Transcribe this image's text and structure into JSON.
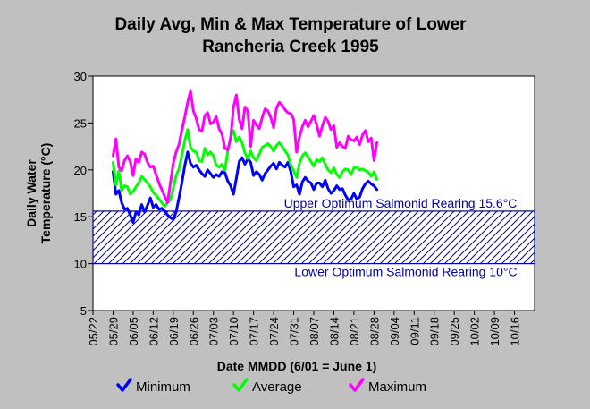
{
  "chart_data": {
    "type": "line",
    "title_line1": "Daily Avg, Min & Max Temperature of Lower",
    "title_line2": "Rancheria Creek 1995",
    "ylabel_line1": "Daily Water",
    "ylabel_line2": "Temperature (°C)",
    "xlabel": "Date MMDD (6/01 = June 1)",
    "ylim": [
      5,
      30
    ],
    "yticks": [
      "5",
      "10",
      "15",
      "20",
      "25",
      "30"
    ],
    "x_start": "05/22",
    "x_end": "10/23",
    "xticks": [
      "05/22",
      "05/29",
      "06/05",
      "06/12",
      "06/19",
      "06/26",
      "07/03",
      "07/10",
      "07/17",
      "07/24",
      "07/31",
      "08/07",
      "08/14",
      "08/21",
      "08/28",
      "09/04",
      "09/11",
      "09/18",
      "09/25",
      "10/02",
      "10/09",
      "10/16"
    ],
    "grid": false,
    "legend_placement": "bottom",
    "bands": [
      {
        "lower": 10,
        "upper": 15.6,
        "upper_label": "Upper Optimum Salmonid Rearing 15.6°C",
        "lower_label": "Lower Optimum Salmonid Rearing 10°C",
        "color": "#0000aa"
      }
    ],
    "series": [
      {
        "name": "Minimum",
        "color": "#0000ff",
        "points": [
          [
            "05/29",
            19.8
          ],
          [
            "05/30",
            17.4
          ],
          [
            "05/31",
            17.8
          ],
          [
            "06/01",
            16.5
          ],
          [
            "06/02",
            15.8
          ],
          [
            "06/03",
            15.9
          ],
          [
            "06/04",
            15.2
          ],
          [
            "06/05",
            14.4
          ],
          [
            "06/06",
            15.5
          ],
          [
            "06/07",
            15.2
          ],
          [
            "06/08",
            16.3
          ],
          [
            "06/09",
            15.5
          ],
          [
            "06/10",
            16.2
          ],
          [
            "06/11",
            17.0
          ],
          [
            "06/12",
            16.0
          ],
          [
            "06/13",
            16.3
          ],
          [
            "06/14",
            15.8
          ],
          [
            "06/15",
            15.9
          ],
          [
            "06/16",
            15.6
          ],
          [
            "06/17",
            15.2
          ],
          [
            "06/18",
            14.9
          ],
          [
            "06/19",
            14.7
          ],
          [
            "06/20",
            15.5
          ],
          [
            "06/21",
            17.0
          ],
          [
            "06/22",
            18.6
          ],
          [
            "06/23",
            20.4
          ],
          [
            "06/24",
            21.9
          ],
          [
            "06/25",
            20.7
          ],
          [
            "06/26",
            20.3
          ],
          [
            "06/27",
            20.5
          ],
          [
            "06/28",
            20.0
          ],
          [
            "06/29",
            19.6
          ],
          [
            "06/30",
            19.3
          ],
          [
            "07/01",
            20.0
          ],
          [
            "07/02",
            19.6
          ],
          [
            "07/03",
            19.2
          ],
          [
            "07/04",
            19.5
          ],
          [
            "07/05",
            19.3
          ],
          [
            "07/06",
            19.8
          ],
          [
            "07/07",
            19.7
          ],
          [
            "07/08",
            18.8
          ],
          [
            "07/09",
            18.3
          ],
          [
            "07/10",
            17.4
          ],
          [
            "07/11",
            19.1
          ],
          [
            "07/12",
            20.9
          ],
          [
            "07/13",
            21.3
          ],
          [
            "07/14",
            20.6
          ],
          [
            "07/15",
            21.2
          ],
          [
            "07/16",
            20.8
          ],
          [
            "07/17",
            19.4
          ],
          [
            "07/18",
            19.8
          ],
          [
            "07/19",
            19.5
          ],
          [
            "07/20",
            18.9
          ],
          [
            "07/21",
            19.6
          ],
          [
            "07/22",
            20.0
          ],
          [
            "07/23",
            20.4
          ],
          [
            "07/24",
            20.7
          ],
          [
            "07/25",
            20.1
          ],
          [
            "07/26",
            20.8
          ],
          [
            "07/27",
            20.5
          ],
          [
            "07/28",
            20.3
          ],
          [
            "07/29",
            20.8
          ],
          [
            "07/30",
            19.8
          ],
          [
            "07/31",
            18.2
          ],
          [
            "08/01",
            18.4
          ],
          [
            "08/02",
            17.4
          ],
          [
            "08/03",
            18.7
          ],
          [
            "08/04",
            19.2
          ],
          [
            "08/05",
            18.8
          ],
          [
            "08/06",
            18.6
          ],
          [
            "08/07",
            17.9
          ],
          [
            "08/08",
            18.6
          ],
          [
            "08/09",
            18.6
          ],
          [
            "08/10",
            18.2
          ],
          [
            "08/11",
            18.9
          ],
          [
            "08/12",
            18.0
          ],
          [
            "08/13",
            17.5
          ],
          [
            "08/14",
            17.8
          ],
          [
            "08/15",
            18.3
          ],
          [
            "08/16",
            17.9
          ],
          [
            "08/17",
            18.0
          ],
          [
            "08/18",
            17.3
          ],
          [
            "08/19",
            16.8
          ],
          [
            "08/20",
            16.9
          ],
          [
            "08/21",
            17.5
          ],
          [
            "08/22",
            16.9
          ],
          [
            "08/23",
            17.1
          ],
          [
            "08/24",
            18.0
          ],
          [
            "08/25",
            18.5
          ],
          [
            "08/26",
            18.8
          ],
          [
            "08/27",
            18.5
          ],
          [
            "08/28",
            18.3
          ],
          [
            "08/29",
            17.9
          ]
        ]
      },
      {
        "name": "Average",
        "color": "#00ff00",
        "points": [
          [
            "05/29",
            20.8
          ],
          [
            "05/30",
            18.4
          ],
          [
            "05/31",
            19.9
          ],
          [
            "06/01",
            17.8
          ],
          [
            "06/02",
            18.3
          ],
          [
            "06/03",
            18.2
          ],
          [
            "06/04",
            17.4
          ],
          [
            "06/05",
            17.7
          ],
          [
            "06/06",
            18.2
          ],
          [
            "06/07",
            18.6
          ],
          [
            "06/08",
            19.3
          ],
          [
            "06/09",
            19.0
          ],
          [
            "06/10",
            18.6
          ],
          [
            "06/11",
            18.2
          ],
          [
            "06/12",
            17.6
          ],
          [
            "06/13",
            17.3
          ],
          [
            "06/14",
            16.9
          ],
          [
            "06/15",
            16.5
          ],
          [
            "06/16",
            16.1
          ],
          [
            "06/17",
            16.5
          ],
          [
            "06/18",
            16.8
          ],
          [
            "06/19",
            18.0
          ],
          [
            "06/20",
            19.4
          ],
          [
            "06/21",
            20.1
          ],
          [
            "06/22",
            21.5
          ],
          [
            "06/23",
            23.1
          ],
          [
            "06/24",
            24.3
          ],
          [
            "06/25",
            22.4
          ],
          [
            "06/26",
            22.0
          ],
          [
            "06/27",
            21.9
          ],
          [
            "06/28",
            21.0
          ],
          [
            "06/29",
            20.9
          ],
          [
            "06/30",
            22.3
          ],
          [
            "07/01",
            21.6
          ],
          [
            "07/02",
            21.9
          ],
          [
            "07/03",
            21.5
          ],
          [
            "07/04",
            20.5
          ],
          [
            "07/05",
            20.3
          ],
          [
            "07/06",
            20.6
          ],
          [
            "07/07",
            20.0
          ],
          [
            "07/08",
            22.0
          ],
          [
            "07/09",
            23.5
          ],
          [
            "07/10",
            24.2
          ],
          [
            "07/11",
            23.0
          ],
          [
            "07/12",
            23.5
          ],
          [
            "07/13",
            22.9
          ],
          [
            "07/14",
            21.8
          ],
          [
            "07/15",
            21.2
          ],
          [
            "07/16",
            22.0
          ],
          [
            "07/17",
            21.3
          ],
          [
            "07/18",
            21.0
          ],
          [
            "07/19",
            21.7
          ],
          [
            "07/20",
            22.4
          ],
          [
            "07/21",
            22.6
          ],
          [
            "07/22",
            22.8
          ],
          [
            "07/23",
            22.5
          ],
          [
            "07/24",
            22.0
          ],
          [
            "07/25",
            22.6
          ],
          [
            "07/26",
            22.9
          ],
          [
            "07/27",
            22.5
          ],
          [
            "07/28",
            22.0
          ],
          [
            "07/29",
            21.6
          ],
          [
            "07/30",
            20.5
          ],
          [
            "07/31",
            19.9
          ],
          [
            "08/01",
            19.2
          ],
          [
            "08/02",
            20.7
          ],
          [
            "08/03",
            21.5
          ],
          [
            "08/04",
            21.8
          ],
          [
            "08/05",
            21.4
          ],
          [
            "08/06",
            20.9
          ],
          [
            "08/07",
            20.4
          ],
          [
            "08/08",
            21.1
          ],
          [
            "08/09",
            20.9
          ],
          [
            "08/10",
            21.3
          ],
          [
            "08/11",
            20.6
          ],
          [
            "08/12",
            20.0
          ],
          [
            "08/13",
            19.7
          ],
          [
            "08/14",
            20.2
          ],
          [
            "08/15",
            19.5
          ],
          [
            "08/16",
            19.2
          ],
          [
            "08/17",
            19.8
          ],
          [
            "08/18",
            20.1
          ],
          [
            "08/19",
            20.0
          ],
          [
            "08/20",
            19.5
          ],
          [
            "08/21",
            20.2
          ],
          [
            "08/22",
            20.3
          ],
          [
            "08/23",
            20.0
          ],
          [
            "08/24",
            20.1
          ],
          [
            "08/25",
            19.9
          ],
          [
            "08/26",
            19.8
          ],
          [
            "08/27",
            19.3
          ],
          [
            "08/28",
            19.8
          ],
          [
            "08/29",
            19.0
          ]
        ]
      },
      {
        "name": "Maximum",
        "color": "#ff00ff",
        "points": [
          [
            "05/29",
            21.5
          ],
          [
            "05/30",
            23.3
          ],
          [
            "05/31",
            20.3
          ],
          [
            "06/01",
            19.9
          ],
          [
            "06/02",
            21.0
          ],
          [
            "06/03",
            21.5
          ],
          [
            "06/04",
            20.9
          ],
          [
            "06/05",
            19.4
          ],
          [
            "06/06",
            21.2
          ],
          [
            "06/07",
            20.8
          ],
          [
            "06/08",
            21.9
          ],
          [
            "06/09",
            21.7
          ],
          [
            "06/10",
            20.8
          ],
          [
            "06/11",
            20.3
          ],
          [
            "06/12",
            20.4
          ],
          [
            "06/13",
            19.5
          ],
          [
            "06/14",
            18.6
          ],
          [
            "06/15",
            17.9
          ],
          [
            "06/16",
            17.2
          ],
          [
            "06/17",
            16.5
          ],
          [
            "06/18",
            18.6
          ],
          [
            "06/19",
            20.7
          ],
          [
            "06/20",
            21.9
          ],
          [
            "06/21",
            22.7
          ],
          [
            "06/22",
            24.2
          ],
          [
            "06/23",
            25.6
          ],
          [
            "06/24",
            27.2
          ],
          [
            "06/25",
            28.4
          ],
          [
            "06/26",
            26.3
          ],
          [
            "06/27",
            25.5
          ],
          [
            "06/28",
            24.3
          ],
          [
            "06/29",
            24.1
          ],
          [
            "06/30",
            25.8
          ],
          [
            "07/01",
            26.1
          ],
          [
            "07/02",
            24.9
          ],
          [
            "07/03",
            25.1
          ],
          [
            "07/04",
            25.7
          ],
          [
            "07/05",
            24.4
          ],
          [
            "07/06",
            23.8
          ],
          [
            "07/07",
            22.3
          ],
          [
            "07/08",
            22.1
          ],
          [
            "07/09",
            23.4
          ],
          [
            "07/10",
            26.7
          ],
          [
            "07/11",
            28.0
          ],
          [
            "07/12",
            25.4
          ],
          [
            "07/13",
            24.4
          ],
          [
            "07/14",
            26.7
          ],
          [
            "07/15",
            26.3
          ],
          [
            "07/16",
            22.5
          ],
          [
            "07/17",
            25.3
          ],
          [
            "07/18",
            24.8
          ],
          [
            "07/19",
            24.4
          ],
          [
            "07/20",
            25.6
          ],
          [
            "07/21",
            26.5
          ],
          [
            "07/22",
            26.3
          ],
          [
            "07/23",
            25.6
          ],
          [
            "07/24",
            24.5
          ],
          [
            "07/25",
            26.6
          ],
          [
            "07/26",
            27.2
          ],
          [
            "07/27",
            26.9
          ],
          [
            "07/28",
            26.4
          ],
          [
            "07/29",
            26.1
          ],
          [
            "07/30",
            26.0
          ],
          [
            "07/31",
            25.4
          ],
          [
            "08/01",
            21.9
          ],
          [
            "08/02",
            23.5
          ],
          [
            "08/03",
            24.6
          ],
          [
            "08/04",
            25.3
          ],
          [
            "08/05",
            24.6
          ],
          [
            "08/06",
            25.2
          ],
          [
            "08/07",
            25.8
          ],
          [
            "08/08",
            24.8
          ],
          [
            "08/09",
            23.6
          ],
          [
            "08/10",
            24.7
          ],
          [
            "08/11",
            25.6
          ],
          [
            "08/12",
            25.2
          ],
          [
            "08/13",
            24.3
          ],
          [
            "08/14",
            24.7
          ],
          [
            "08/15",
            22.4
          ],
          [
            "08/16",
            22.9
          ],
          [
            "08/17",
            22.5
          ],
          [
            "08/18",
            22.3
          ],
          [
            "08/19",
            23.6
          ],
          [
            "08/20",
            23.2
          ],
          [
            "08/21",
            23.1
          ],
          [
            "08/22",
            23.5
          ],
          [
            "08/23",
            22.7
          ],
          [
            "08/24",
            23.7
          ],
          [
            "08/25",
            24.2
          ],
          [
            "08/26",
            23.0
          ],
          [
            "08/27",
            23.4
          ],
          [
            "08/28",
            21.0
          ],
          [
            "08/29",
            22.9
          ]
        ]
      }
    ]
  }
}
